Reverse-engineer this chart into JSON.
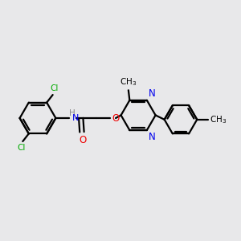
{
  "background_color": "#e8e8ea",
  "bond_color": "#000000",
  "bond_width": 1.6,
  "cl_color": "#00aa00",
  "n_color": "#0000ee",
  "o_color": "#ee0000",
  "h_color": "#888888",
  "c_color": "#000000",
  "xlim": [
    0,
    10
  ],
  "ylim": [
    0,
    10
  ]
}
